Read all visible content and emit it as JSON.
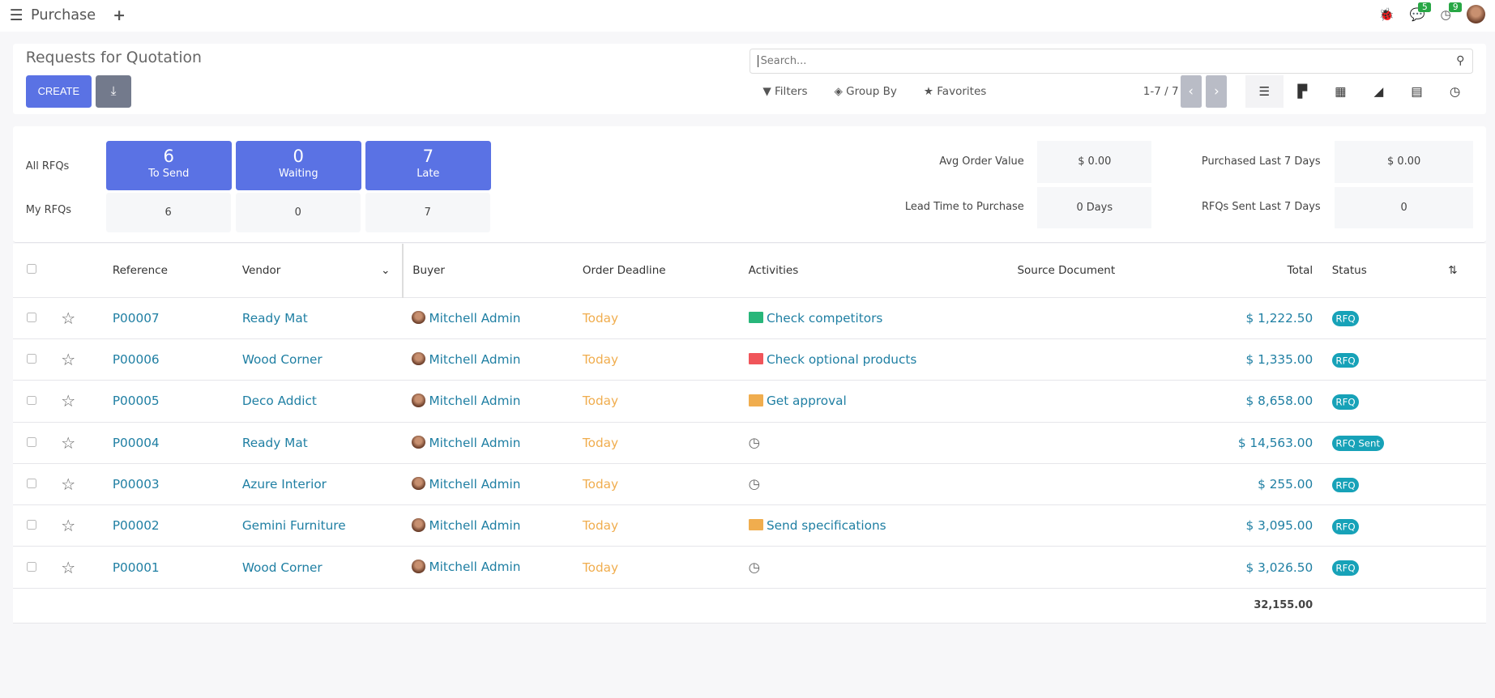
{
  "topbar": {
    "app_title": "Purchase",
    "messages_count": "5",
    "activities_count": "9"
  },
  "control": {
    "title": "Requests for Quotation",
    "create_label": "CREATE",
    "search_placeholder": "Search...",
    "filters": "Filters",
    "group_by": "Group By",
    "favorites": "Favorites",
    "pager": "1-7 / 7"
  },
  "dashboard": {
    "all_rfqs": "All RFQs",
    "my_rfqs": "My RFQs",
    "tiles": [
      {
        "value": "6",
        "label": "To Send"
      },
      {
        "value": "0",
        "label": "Waiting"
      },
      {
        "value": "7",
        "label": "Late"
      }
    ],
    "my": [
      "6",
      "0",
      "7"
    ],
    "stats": [
      {
        "label": "Avg Order Value",
        "value": "$ 0.00"
      },
      {
        "label": "Purchased Last 7 Days",
        "value": "$ 0.00"
      },
      {
        "label": "Lead Time to Purchase",
        "value": "0 Days"
      },
      {
        "label": "RFQs Sent Last 7 Days",
        "value": "0"
      }
    ]
  },
  "table": {
    "headers": {
      "reference": "Reference",
      "vendor": "Vendor",
      "buyer": "Buyer",
      "deadline": "Order Deadline",
      "activities": "Activities",
      "source": "Source Document",
      "total": "Total",
      "status": "Status"
    },
    "rows": [
      {
        "ref": "P00007",
        "vendor": "Ready Mat",
        "buyer": "Mitchell Admin",
        "deadline": "Today",
        "activity": "Check competitors",
        "activity_color": "#28b67a",
        "total": "$ 1,222.50",
        "status": "RFQ"
      },
      {
        "ref": "P00006",
        "vendor": "Wood Corner",
        "buyer": "Mitchell Admin",
        "deadline": "Today",
        "activity": "Check optional products",
        "activity_color": "#f0555a",
        "total": "$ 1,335.00",
        "status": "RFQ"
      },
      {
        "ref": "P00005",
        "vendor": "Deco Addict",
        "buyer": "Mitchell Admin",
        "deadline": "Today",
        "activity": "Get approval",
        "activity_color": "#f0ad4e",
        "total": "$ 8,658.00",
        "status": "RFQ"
      },
      {
        "ref": "P00004",
        "vendor": "Ready Mat",
        "buyer": "Mitchell Admin",
        "deadline": "Today",
        "activity": "",
        "activity_color": "",
        "total": "$ 14,563.00",
        "status": "RFQ Sent"
      },
      {
        "ref": "P00003",
        "vendor": "Azure Interior",
        "buyer": "Mitchell Admin",
        "deadline": "Today",
        "activity": "",
        "activity_color": "",
        "total": "$ 255.00",
        "status": "RFQ"
      },
      {
        "ref": "P00002",
        "vendor": "Gemini Furniture",
        "buyer": "Mitchell Admin",
        "deadline": "Today",
        "activity": "Send specifications",
        "activity_color": "#f0ad4e",
        "total": "$ 3,095.00",
        "status": "RFQ"
      },
      {
        "ref": "P00001",
        "vendor": "Wood Corner",
        "buyer": "Mitchell Admin",
        "deadline": "Today",
        "activity": "",
        "activity_color": "",
        "total": "$ 3,026.50",
        "status": "RFQ"
      }
    ],
    "sum_total": "32,155.00"
  }
}
